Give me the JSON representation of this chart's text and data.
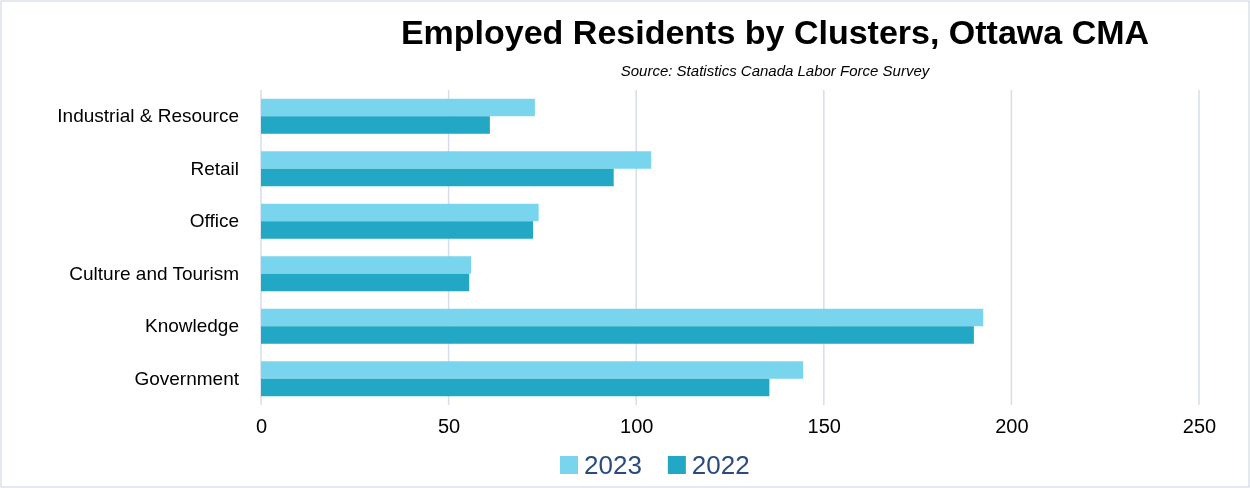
{
  "chart_data": {
    "type": "bar",
    "orientation": "horizontal",
    "title": "Employed Residents by Clusters, Ottawa CMA",
    "subtitle": "Source: Statistics Canada Labor Force Survey",
    "categories": [
      "Industrial & Resource",
      "Retail",
      "Office",
      "Culture and Tourism",
      "Knowledge",
      "Government"
    ],
    "series": [
      {
        "name": "2023",
        "color": "#79d5ee",
        "values": [
          73,
          104,
          74,
          56,
          192.5,
          144.5
        ]
      },
      {
        "name": "2022",
        "color": "#22a7c4",
        "values": [
          61,
          94,
          72.5,
          55.5,
          190,
          135.5
        ]
      }
    ],
    "xlim": [
      0,
      250
    ],
    "xticks": [
      0,
      50,
      100,
      150,
      200,
      250
    ],
    "grid": "x",
    "legend": "bottom"
  }
}
